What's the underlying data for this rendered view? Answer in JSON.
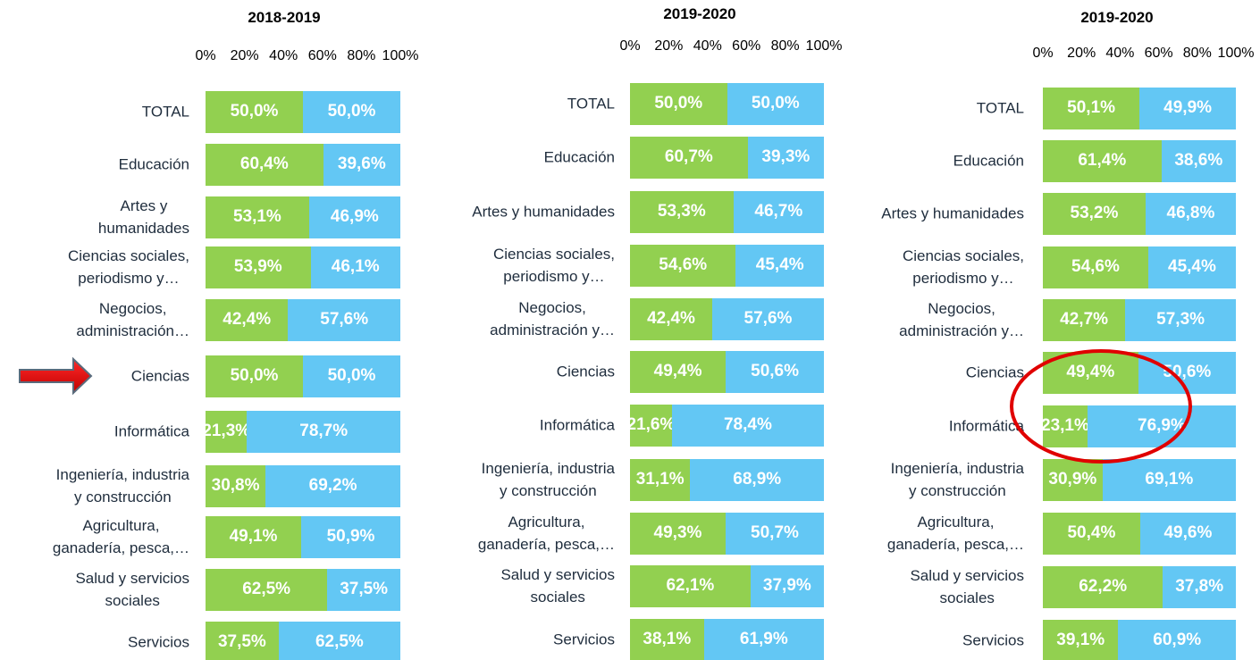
{
  "chart_data": [
    {
      "type": "bar",
      "stacked": true,
      "orientation": "horizontal",
      "title": "2018-2019",
      "categories": [
        "TOTAL",
        "Educación",
        "Artes y\nhumanidades",
        "Ciencias sociales,\nperiodismo y…",
        "Negocios,\nadministración…",
        "Ciencias",
        "Informática",
        "Ingeniería, industria\ny construcción",
        "Agricultura,\nganadería, pesca,…",
        "Salud y servicios\nsociales",
        "Servicios"
      ],
      "series": [
        {
          "color": "#92d050",
          "values": [
            50.0,
            60.4,
            53.1,
            53.9,
            42.4,
            50.0,
            21.3,
            30.8,
            49.1,
            62.5,
            37.5
          ],
          "value_labels": [
            "50,0%",
            "60,4%",
            "53,1%",
            "53,9%",
            "42,4%",
            "50,0%",
            "21,3%",
            "30,8%",
            "49,1%",
            "62,5%",
            "37,5%"
          ]
        },
        {
          "color": "#63c7f4",
          "values": [
            50.0,
            39.6,
            46.9,
            46.1,
            57.6,
            50.0,
            78.7,
            69.2,
            50.9,
            37.5,
            62.5
          ],
          "value_labels": [
            "50,0%",
            "39,6%",
            "46,9%",
            "46,1%",
            "57,6%",
            "50,0%",
            "78,7%",
            "69,2%",
            "50,9%",
            "37,5%",
            "62,5%"
          ]
        }
      ],
      "xlim": [
        0,
        100
      ],
      "xticks": [
        {
          "value": 0,
          "label": "0%"
        },
        {
          "value": 20,
          "label": "20%"
        },
        {
          "value": 40,
          "label": "40%"
        },
        {
          "value": 60,
          "label": "60%"
        },
        {
          "value": 80,
          "label": "80%"
        },
        {
          "value": 100,
          "label": "100%"
        }
      ]
    },
    {
      "type": "bar",
      "stacked": true,
      "orientation": "horizontal",
      "title": "2019-2020",
      "categories": [
        "TOTAL",
        "Educación",
        "Artes y humanidades",
        "Ciencias sociales,\nperiodismo y…",
        "Negocios,\nadministración y…",
        "Ciencias",
        "Informática",
        "Ingeniería, industria\ny construcción",
        "Agricultura,\nganadería, pesca,…",
        "Salud y servicios\nsociales",
        "Servicios"
      ],
      "series": [
        {
          "color": "#92d050",
          "values": [
            50.0,
            60.7,
            53.3,
            54.6,
            42.4,
            49.4,
            21.6,
            31.1,
            49.3,
            62.1,
            38.1
          ],
          "value_labels": [
            "50,0%",
            "60,7%",
            "53,3%",
            "54,6%",
            "42,4%",
            "49,4%",
            "21,6%",
            "31,1%",
            "49,3%",
            "62,1%",
            "38,1%"
          ]
        },
        {
          "color": "#63c7f4",
          "values": [
            50.0,
            39.3,
            46.7,
            45.4,
            57.6,
            50.6,
            78.4,
            68.9,
            50.7,
            37.9,
            61.9
          ],
          "value_labels": [
            "50,0%",
            "39,3%",
            "46,7%",
            "45,4%",
            "57,6%",
            "50,6%",
            "78,4%",
            "68,9%",
            "50,7%",
            "37,9%",
            "61,9%"
          ]
        }
      ],
      "xlim": [
        0,
        100
      ],
      "xticks": [
        {
          "value": 0,
          "label": "0%"
        },
        {
          "value": 20,
          "label": "20%"
        },
        {
          "value": 40,
          "label": "40%"
        },
        {
          "value": 60,
          "label": "60%"
        },
        {
          "value": 80,
          "label": "80%"
        },
        {
          "value": 100,
          "label": "100%"
        }
      ]
    },
    {
      "type": "bar",
      "stacked": true,
      "orientation": "horizontal",
      "title": "2019-2020",
      "categories": [
        "TOTAL",
        "Educación",
        "Artes y humanidades",
        "Ciencias sociales,\nperiodismo y…",
        "Negocios,\nadministración y…",
        "Ciencias",
        "Informática",
        "Ingeniería, industria\ny construcción",
        "Agricultura,\nganadería, pesca,…",
        "Salud y servicios\nsociales",
        "Servicios"
      ],
      "series": [
        {
          "color": "#92d050",
          "values": [
            50.1,
            61.4,
            53.2,
            54.6,
            42.7,
            49.4,
            23.1,
            30.9,
            50.4,
            62.2,
            39.1
          ],
          "value_labels": [
            "50,1%",
            "61,4%",
            "53,2%",
            "54,6%",
            "42,7%",
            "49,4%",
            "23,1%",
            "30,9%",
            "50,4%",
            "62,2%",
            "39,1%"
          ]
        },
        {
          "color": "#63c7f4",
          "values": [
            49.9,
            38.6,
            46.8,
            45.4,
            57.3,
            50.6,
            76.9,
            69.1,
            49.6,
            37.8,
            60.9
          ],
          "value_labels": [
            "49,9%",
            "38,6%",
            "46,8%",
            "45,4%",
            "57,3%",
            "50,6%",
            "76,9%",
            "69,1%",
            "49,6%",
            "37,8%",
            "60,9%"
          ]
        }
      ],
      "xlim": [
        0,
        100
      ],
      "xticks": [
        {
          "value": 0,
          "label": "0%"
        },
        {
          "value": 20,
          "label": "20%"
        },
        {
          "value": 40,
          "label": "40%"
        },
        {
          "value": 60,
          "label": "60%"
        },
        {
          "value": 80,
          "label": "80%"
        },
        {
          "value": 100,
          "label": "100%"
        }
      ]
    }
  ]
}
